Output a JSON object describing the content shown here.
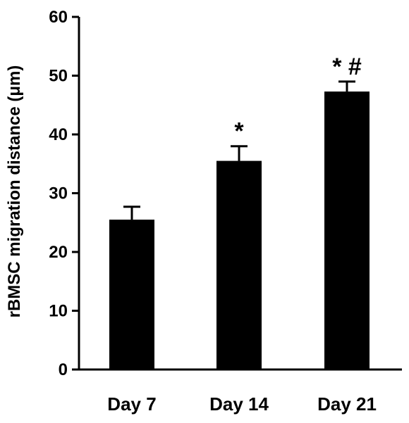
{
  "chart_data": {
    "type": "bar",
    "categories": [
      "Day 7",
      "Day 14",
      "Day 21"
    ],
    "values": [
      25.5,
      35.5,
      47.3
    ],
    "error_upper": [
      2.2,
      2.5,
      1.7
    ],
    "annotations": [
      "",
      "*",
      "* #"
    ],
    "ylabel": "rBMSC migration distance (μm)",
    "xlabel": "",
    "ylim": [
      0,
      60
    ],
    "yticks": [
      0,
      10,
      20,
      30,
      40,
      50,
      60
    ],
    "grid": false,
    "colors": {
      "bar": "#000000",
      "axis": "#000000"
    }
  }
}
